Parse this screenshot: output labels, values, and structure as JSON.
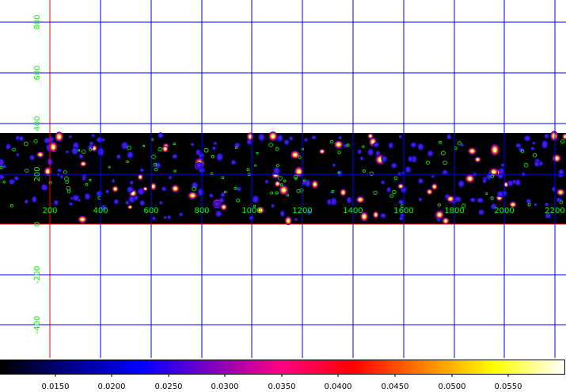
{
  "colors": {
    "grid": "#0000ff",
    "axis": "#ff0000",
    "label": "#00ff00",
    "background": "#ffffff",
    "image": "#000000"
  },
  "x_axis": {
    "labels": [
      "200",
      "400",
      "600",
      "800",
      "1000",
      "1200",
      "1400",
      "1600",
      "1800",
      "2000",
      "2200"
    ]
  },
  "y_axis": {
    "labels": [
      "800",
      "600",
      "400",
      "200",
      "0",
      "-200",
      "-400"
    ]
  },
  "colorbar": {
    "labels": [
      "0.0150",
      "0.0200",
      "0.0250",
      "0.0300",
      "0.0350",
      "0.0400",
      "0.0450",
      "0.0500",
      "0.0550"
    ],
    "stops": [
      "#000000",
      "#00008b",
      "#0000ff",
      "#8000c0",
      "#ff0080",
      "#ff0000",
      "#ff8000",
      "#ffff00",
      "#ffffff"
    ]
  }
}
